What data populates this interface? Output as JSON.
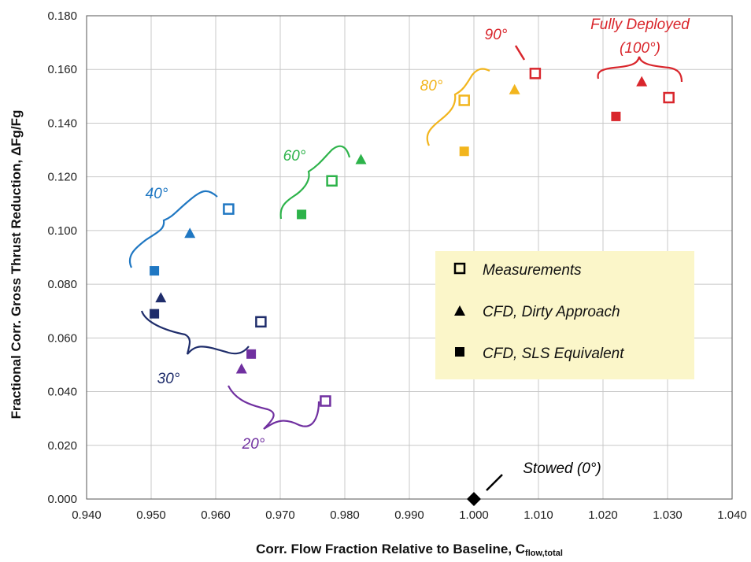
{
  "chart_data": {
    "type": "scatter",
    "title": "",
    "xlabel": "Corr. Flow Fraction Relative to Baseline, C",
    "xlabel_sub": "flow,total",
    "ylabel": "Fractional Corr. Gross Thrust Reduction, ΔFg/Fg",
    "xlim": [
      0.94,
      1.04
    ],
    "ylim": [
      0.0,
      0.18
    ],
    "x_ticks": [
      "0.940",
      "0.950",
      "0.960",
      "0.970",
      "0.980",
      "0.990",
      "1.000",
      "1.010",
      "1.020",
      "1.030",
      "1.040"
    ],
    "y_ticks": [
      "0.000",
      "0.020",
      "0.040",
      "0.060",
      "0.080",
      "0.100",
      "0.120",
      "0.140",
      "0.160",
      "0.180"
    ],
    "grid": true,
    "legend_position": "right",
    "legend": [
      {
        "label": "Measurements",
        "marker": "open-square"
      },
      {
        "label": "CFD, Dirty Approach",
        "marker": "triangle"
      },
      {
        "label": "CFD, SLS Equivalent",
        "marker": "filled-square"
      }
    ],
    "groups": [
      {
        "label": "20°",
        "color": "#7030a0",
        "measurement": [
          0.977,
          0.0365
        ],
        "cfd_dirty": [
          0.964,
          0.0485
        ],
        "cfd_sls": [
          0.9655,
          0.054
        ]
      },
      {
        "label": "30°",
        "color": "#1f2d6b",
        "measurement": [
          0.967,
          0.066
        ],
        "cfd_dirty": [
          0.9515,
          0.075
        ],
        "cfd_sls": [
          0.9505,
          0.069
        ]
      },
      {
        "label": "40°",
        "color": "#1f77c2",
        "measurement": [
          0.962,
          0.108
        ],
        "cfd_dirty": [
          0.956,
          0.099
        ],
        "cfd_sls": [
          0.9505,
          0.085
        ]
      },
      {
        "label": "60°",
        "color": "#2db34a",
        "measurement": [
          0.978,
          0.1185
        ],
        "cfd_dirty": [
          0.9825,
          0.1265
        ],
        "cfd_sls": [
          0.9733,
          0.106
        ]
      },
      {
        "label": "80°",
        "color": "#f2b51d",
        "measurement": [
          0.9985,
          0.1485
        ],
        "cfd_dirty": [
          1.0063,
          0.1525
        ],
        "cfd_sls": [
          0.9985,
          0.1295
        ]
      },
      {
        "label": "90°",
        "color": "#d9262c",
        "measurement": [
          1.0095,
          0.1585
        ],
        "cfd_dirty": null,
        "cfd_sls": null
      },
      {
        "label": "Fully Deployed\n(100°)",
        "color": "#d9262c",
        "measurement": [
          1.0302,
          0.1495
        ],
        "cfd_dirty": [
          1.026,
          0.1555
        ],
        "cfd_sls": [
          1.022,
          0.1425
        ]
      }
    ],
    "stowed": {
      "label": "Stowed (0°)",
      "color": "#000000",
      "point": [
        1.0,
        0.0
      ]
    }
  }
}
